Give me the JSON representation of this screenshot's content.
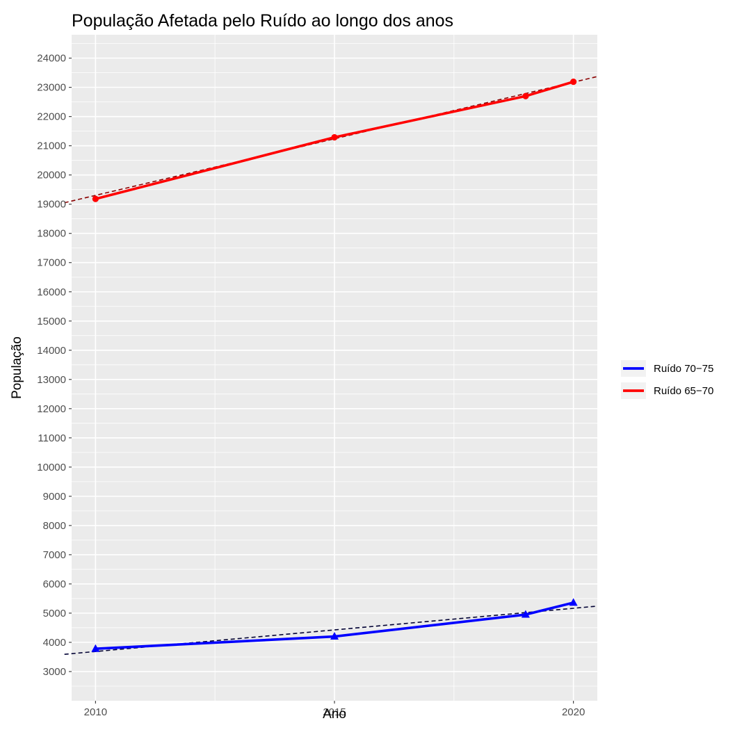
{
  "chart_data": {
    "type": "line",
    "title": "População Afetada pelo Ruído ao longo dos anos",
    "xlabel": "Ano",
    "ylabel": "População",
    "x_ticks": [
      2010,
      2015,
      2020
    ],
    "y_ticks": [
      3000,
      4000,
      5000,
      6000,
      7000,
      8000,
      9000,
      10000,
      11000,
      12000,
      13000,
      14000,
      15000,
      16000,
      17000,
      18000,
      19000,
      20000,
      21000,
      22000,
      23000,
      24000
    ],
    "xlim": [
      2009.5,
      2020.5
    ],
    "ylim": [
      2000,
      24800
    ],
    "grid": true,
    "legend_position": "right",
    "series": [
      {
        "name": "Ruído 70−75",
        "color": "#0000ff",
        "marker": "triangle",
        "x": [
          2010,
          2015,
          2019,
          2020
        ],
        "values": [
          3780,
          4200,
          4950,
          5360
        ],
        "trend": {
          "color": "#000033",
          "x": [
            2009.35,
            2020.5
          ],
          "values": [
            3590,
            5240
          ]
        }
      },
      {
        "name": "Ruído 65−70",
        "color": "#ff0000",
        "marker": "circle",
        "x": [
          2010,
          2015,
          2019,
          2020
        ],
        "values": [
          19180,
          21290,
          22700,
          23190
        ],
        "trend": {
          "color": "#8b0000",
          "x": [
            2009.35,
            2020.5
          ],
          "values": [
            19050,
            23370
          ]
        }
      }
    ]
  }
}
